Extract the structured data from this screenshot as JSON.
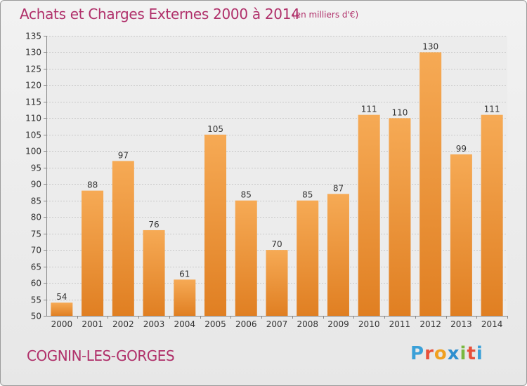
{
  "header": {
    "title": "Achats et Charges Externes 2000 à 2014",
    "subtitle": "(en milliers d'€)"
  },
  "footer": {
    "commune": "COGNIN-LES-GORGES",
    "logo_text": "Proxiti",
    "logo_letter_colors": [
      "#3aa0d8",
      "#e8503a",
      "#f0a020",
      "#2e8fcf",
      "#7ab840",
      "#e8503a",
      "#3aa0d8"
    ]
  },
  "colors": {
    "bar_light": "#f6aa55",
    "bar_dark": "#e07f22",
    "text": "#333333",
    "accent": "#b0306a",
    "grid": "#c8c8c8"
  },
  "chart_data": {
    "type": "bar",
    "categories": [
      "2000",
      "2001",
      "2002",
      "2003",
      "2004",
      "2005",
      "2006",
      "2007",
      "2008",
      "2009",
      "2010",
      "2011",
      "2012",
      "2013",
      "2014"
    ],
    "values": [
      54,
      88,
      97,
      76,
      61,
      105,
      85,
      70,
      85,
      87,
      111,
      110,
      130,
      99,
      111
    ],
    "ylim": [
      50,
      135
    ],
    "yticks": [
      50,
      55,
      60,
      65,
      70,
      75,
      80,
      85,
      90,
      95,
      100,
      105,
      110,
      115,
      120,
      125,
      130,
      135
    ],
    "grid": true,
    "data_labels": true
  }
}
